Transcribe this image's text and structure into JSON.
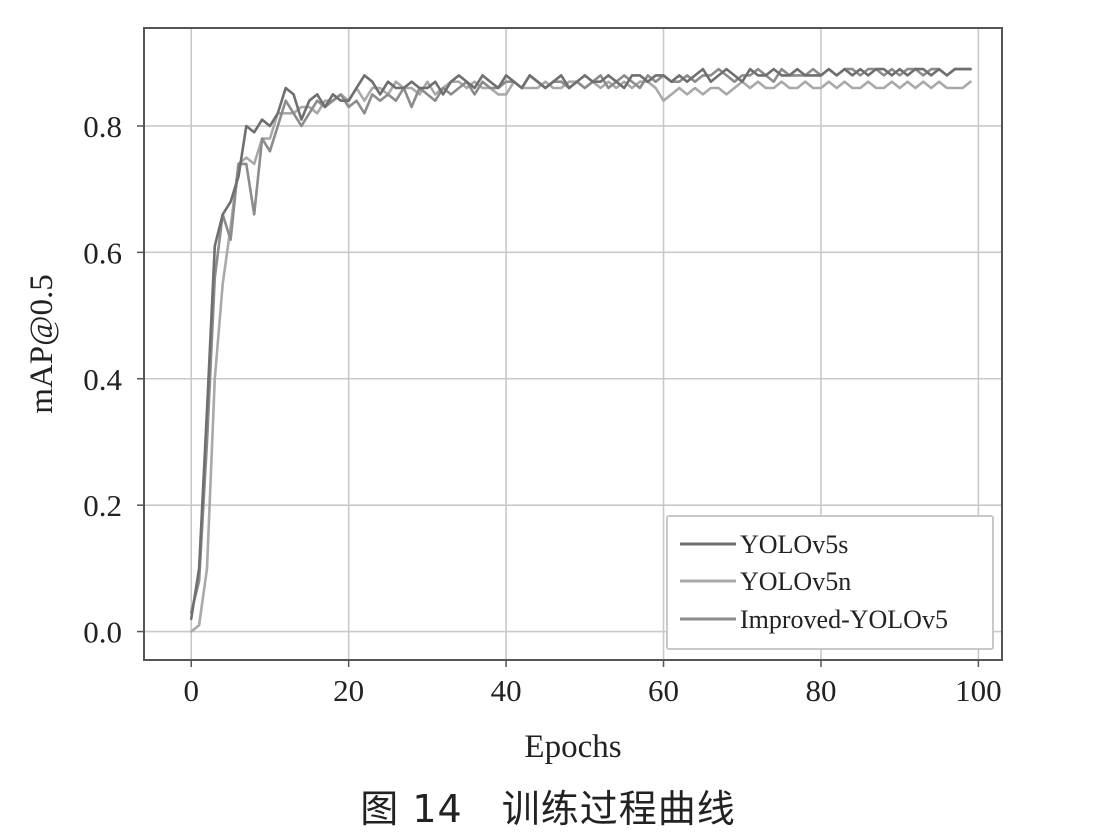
{
  "caption": "图 14　训练过程曲线",
  "chart_data": {
    "type": "line",
    "xlabel": "Epochs",
    "ylabel": "mAP@0.5",
    "xlim": [
      -6,
      103
    ],
    "ylim": [
      -0.045,
      0.955
    ],
    "xticks": [
      0,
      20,
      40,
      60,
      80,
      100
    ],
    "yticks": [
      0.0,
      0.2,
      0.4,
      0.6,
      0.8
    ],
    "xtick_labels": [
      "0",
      "20",
      "40",
      "60",
      "80",
      "100"
    ],
    "ytick_labels": [
      "0.0",
      "0.2",
      "0.4",
      "0.6",
      "0.8"
    ],
    "grid": true,
    "legend_position": "bottom-right",
    "colors": {
      "YOLOv5s": "#6f6f6f",
      "YOLOv5n": "#a9a9a9",
      "Improved-YOLOv5": "#8c8c8c"
    },
    "series": [
      {
        "name": "YOLOv5s",
        "x": [
          0,
          1,
          2,
          3,
          4,
          5,
          6,
          7,
          8,
          9,
          10,
          11,
          12,
          13,
          14,
          15,
          16,
          17,
          18,
          19,
          20,
          21,
          22,
          23,
          24,
          25,
          26,
          27,
          28,
          29,
          30,
          31,
          32,
          33,
          34,
          35,
          36,
          37,
          38,
          39,
          40,
          41,
          42,
          43,
          44,
          45,
          46,
          47,
          48,
          49,
          50,
          51,
          52,
          53,
          54,
          55,
          56,
          57,
          58,
          59,
          60,
          61,
          62,
          63,
          64,
          65,
          66,
          67,
          68,
          69,
          70,
          71,
          72,
          73,
          74,
          75,
          76,
          77,
          78,
          79,
          80,
          81,
          82,
          83,
          84,
          85,
          86,
          87,
          88,
          89,
          90,
          91,
          92,
          93,
          94,
          95,
          96,
          97,
          98,
          99
        ],
        "values": [
          0.02,
          0.1,
          0.35,
          0.61,
          0.66,
          0.68,
          0.72,
          0.8,
          0.79,
          0.81,
          0.8,
          0.82,
          0.86,
          0.85,
          0.81,
          0.84,
          0.85,
          0.83,
          0.85,
          0.84,
          0.84,
          0.86,
          0.88,
          0.87,
          0.85,
          0.87,
          0.86,
          0.86,
          0.87,
          0.86,
          0.86,
          0.87,
          0.85,
          0.87,
          0.88,
          0.87,
          0.86,
          0.88,
          0.87,
          0.86,
          0.88,
          0.87,
          0.86,
          0.88,
          0.87,
          0.86,
          0.87,
          0.88,
          0.86,
          0.87,
          0.88,
          0.87,
          0.87,
          0.88,
          0.87,
          0.86,
          0.88,
          0.88,
          0.87,
          0.88,
          0.88,
          0.87,
          0.88,
          0.87,
          0.88,
          0.89,
          0.87,
          0.88,
          0.89,
          0.88,
          0.87,
          0.89,
          0.88,
          0.88,
          0.89,
          0.88,
          0.88,
          0.89,
          0.88,
          0.88,
          0.88,
          0.89,
          0.88,
          0.89,
          0.88,
          0.89,
          0.88,
          0.89,
          0.89,
          0.88,
          0.89,
          0.88,
          0.89,
          0.89,
          0.88,
          0.89,
          0.88,
          0.89,
          0.89,
          0.89
        ]
      },
      {
        "name": "YOLOv5n",
        "x": [
          0,
          1,
          2,
          3,
          4,
          5,
          6,
          7,
          8,
          9,
          10,
          11,
          12,
          13,
          14,
          15,
          16,
          17,
          18,
          19,
          20,
          21,
          22,
          23,
          24,
          25,
          26,
          27,
          28,
          29,
          30,
          31,
          32,
          33,
          34,
          35,
          36,
          37,
          38,
          39,
          40,
          41,
          42,
          43,
          44,
          45,
          46,
          47,
          48,
          49,
          50,
          51,
          52,
          53,
          54,
          55,
          56,
          57,
          58,
          59,
          60,
          61,
          62,
          63,
          64,
          65,
          66,
          67,
          68,
          69,
          70,
          71,
          72,
          73,
          74,
          75,
          76,
          77,
          78,
          79,
          80,
          81,
          82,
          83,
          84,
          85,
          86,
          87,
          88,
          89,
          90,
          91,
          92,
          93,
          94,
          95,
          96,
          97,
          98,
          99
        ],
        "values": [
          0.0,
          0.01,
          0.1,
          0.4,
          0.55,
          0.64,
          0.74,
          0.75,
          0.74,
          0.78,
          0.78,
          0.82,
          0.82,
          0.82,
          0.83,
          0.83,
          0.82,
          0.84,
          0.84,
          0.85,
          0.84,
          0.86,
          0.84,
          0.86,
          0.86,
          0.85,
          0.87,
          0.86,
          0.86,
          0.85,
          0.87,
          0.85,
          0.86,
          0.87,
          0.87,
          0.86,
          0.87,
          0.86,
          0.86,
          0.85,
          0.85,
          0.87,
          0.86,
          0.86,
          0.86,
          0.87,
          0.86,
          0.86,
          0.87,
          0.87,
          0.86,
          0.87,
          0.86,
          0.87,
          0.86,
          0.87,
          0.86,
          0.87,
          0.87,
          0.86,
          0.84,
          0.85,
          0.86,
          0.85,
          0.86,
          0.85,
          0.86,
          0.86,
          0.85,
          0.86,
          0.87,
          0.86,
          0.87,
          0.86,
          0.86,
          0.87,
          0.86,
          0.86,
          0.87,
          0.86,
          0.86,
          0.87,
          0.86,
          0.87,
          0.86,
          0.86,
          0.87,
          0.86,
          0.86,
          0.87,
          0.86,
          0.87,
          0.86,
          0.87,
          0.86,
          0.87,
          0.86,
          0.86,
          0.86,
          0.87
        ]
      },
      {
        "name": "Improved-YOLOv5",
        "x": [
          0,
          1,
          2,
          3,
          4,
          5,
          6,
          7,
          8,
          9,
          10,
          11,
          12,
          13,
          14,
          15,
          16,
          17,
          18,
          19,
          20,
          21,
          22,
          23,
          24,
          25,
          26,
          27,
          28,
          29,
          30,
          31,
          32,
          33,
          34,
          35,
          36,
          37,
          38,
          39,
          40,
          41,
          42,
          43,
          44,
          45,
          46,
          47,
          48,
          49,
          50,
          51,
          52,
          53,
          54,
          55,
          56,
          57,
          58,
          59,
          60,
          61,
          62,
          63,
          64,
          65,
          66,
          67,
          68,
          69,
          70,
          71,
          72,
          73,
          74,
          75,
          76,
          77,
          78,
          79,
          80,
          81,
          82,
          83,
          84,
          85,
          86,
          87,
          88,
          89,
          90,
          91,
          92,
          93,
          94,
          95,
          96,
          97,
          98,
          99
        ],
        "values": [
          0.03,
          0.08,
          0.3,
          0.56,
          0.66,
          0.62,
          0.74,
          0.74,
          0.66,
          0.78,
          0.76,
          0.8,
          0.84,
          0.82,
          0.8,
          0.82,
          0.84,
          0.83,
          0.84,
          0.85,
          0.83,
          0.84,
          0.82,
          0.85,
          0.84,
          0.85,
          0.84,
          0.86,
          0.83,
          0.86,
          0.85,
          0.84,
          0.86,
          0.85,
          0.86,
          0.87,
          0.85,
          0.87,
          0.86,
          0.86,
          0.87,
          0.87,
          0.86,
          0.88,
          0.87,
          0.86,
          0.87,
          0.87,
          0.86,
          0.87,
          0.86,
          0.87,
          0.88,
          0.86,
          0.87,
          0.88,
          0.87,
          0.86,
          0.88,
          0.87,
          0.88,
          0.87,
          0.87,
          0.88,
          0.87,
          0.88,
          0.88,
          0.89,
          0.88,
          0.87,
          0.88,
          0.88,
          0.89,
          0.88,
          0.87,
          0.89,
          0.88,
          0.88,
          0.88,
          0.89,
          0.88,
          0.89,
          0.88,
          0.89,
          0.89,
          0.88,
          0.89,
          0.89,
          0.88,
          0.89,
          0.88,
          0.89,
          0.89,
          0.88,
          0.89,
          0.89,
          0.88,
          0.89,
          0.89,
          0.89
        ]
      }
    ]
  }
}
